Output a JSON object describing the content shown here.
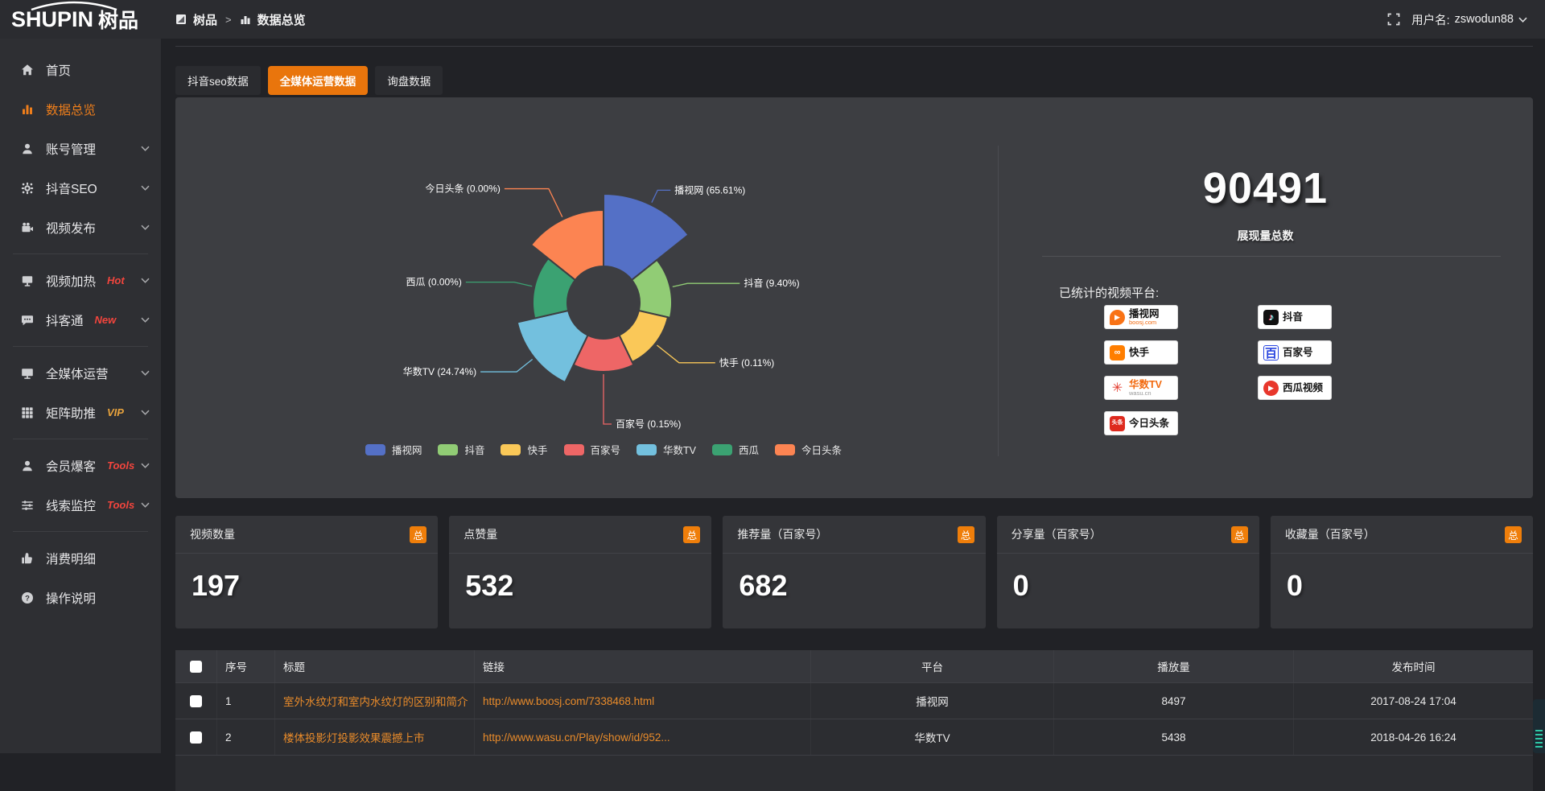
{
  "app": {
    "logo_text": "SHUPIN",
    "logo_suffix": "树品"
  },
  "topbar": {
    "breadcrumb_root": "树品",
    "breadcrumb_separator": ">",
    "breadcrumb_current": "数据总览",
    "user_label": "用户名:",
    "username": "zswodun88"
  },
  "tabs": [
    {
      "label": "抖音seo数据",
      "active": false
    },
    {
      "label": "全媒体运营数据",
      "active": true
    },
    {
      "label": "询盘数据",
      "active": false
    }
  ],
  "sidebar": {
    "items": [
      {
        "label": "首页",
        "icon": "home-icon"
      },
      {
        "label": "数据总览",
        "icon": "bar-chart-icon",
        "active": true
      },
      {
        "label": "账号管理",
        "icon": "user-icon",
        "chevron": true
      },
      {
        "label": "抖音SEO",
        "icon": "gear-icon",
        "chevron": true
      },
      {
        "label": "视频发布",
        "icon": "video-camera-icon",
        "chevron": true,
        "divider_after": true
      },
      {
        "label": "视频加热",
        "icon": "billboard-icon",
        "badge": "Hot",
        "badge_color": "#f2453d",
        "chevron": true
      },
      {
        "label": "抖客通",
        "icon": "chat-icon",
        "badge": "New",
        "badge_color": "#f2453d",
        "chevron": true,
        "divider_after": true
      },
      {
        "label": "全媒体运营",
        "icon": "monitor-icon",
        "chevron": true
      },
      {
        "label": "矩阵助推",
        "icon": "grid-icon",
        "badge": "VIP",
        "badge_color": "#e8a33d",
        "chevron": true,
        "divider_after": true
      },
      {
        "label": "会员爆客",
        "icon": "member-icon",
        "badge": "Tools",
        "badge_color": "#f2453d",
        "chevron": true
      },
      {
        "label": "线索监控",
        "icon": "sliders-icon",
        "badge": "Tools",
        "badge_color": "#f2453d",
        "chevron": true,
        "divider_after": true
      },
      {
        "label": "消费明细",
        "icon": "thumb-up-icon"
      },
      {
        "label": "操作说明",
        "icon": "question-icon"
      }
    ]
  },
  "chart_data": {
    "type": "pie",
    "subtype": "nightingale-rose-donut",
    "title": "",
    "unit": "percent",
    "series": [
      {
        "name": "播视网",
        "value": 65.61,
        "label": "播视网 (65.61%)",
        "color": "#5470c6"
      },
      {
        "name": "抖音",
        "value": 9.4,
        "label": "抖音 (9.40%)",
        "color": "#91cc75"
      },
      {
        "name": "快手",
        "value": 0.11,
        "label": "快手 (0.11%)",
        "color": "#fac858"
      },
      {
        "name": "百家号",
        "value": 0.15,
        "label": "百家号 (0.15%)",
        "color": "#ee6666"
      },
      {
        "name": "华数TV",
        "value": 24.74,
        "label": "华数TV (24.74%)",
        "color": "#73c0de"
      },
      {
        "name": "西瓜",
        "value": 0.0,
        "label": "西瓜 (0.00%)",
        "color": "#3ba272"
      },
      {
        "name": "今日头条",
        "value": 0.0,
        "label": "今日头条 (0.00%)",
        "color": "#fc8452"
      }
    ],
    "legend": [
      "播视网",
      "抖音",
      "快手",
      "百家号",
      "华数TV",
      "西瓜",
      "今日头条"
    ],
    "legend_position": "bottom",
    "layout_hints": {
      "start_angle": -90,
      "inner_radius": 45,
      "outer_radii": [
        135,
        85,
        82,
        86,
        110,
        88,
        115
      ],
      "center": [
        532,
        255
      ]
    }
  },
  "summary": {
    "total_value": "90491",
    "total_label": "展现量总数",
    "platforms_label": "已统计的视频平台:",
    "platform_columns": [
      [
        {
          "name": "播视网",
          "sub": "boosj.com",
          "icon": "boosj-logo-icon"
        },
        {
          "name": "快手",
          "sub": "",
          "icon": "kuaishou-logo-icon"
        },
        {
          "name": "华数TV",
          "sub": "wasu.cn",
          "icon": "wasu-logo-icon"
        },
        {
          "name": "今日头条",
          "sub": "",
          "icon": "toutiao-logo-icon"
        }
      ],
      [
        {
          "name": "抖音",
          "sub": "",
          "icon": "douyin-logo-icon"
        },
        {
          "name": "百家号",
          "sub": "",
          "icon": "baijiahao-logo-icon"
        },
        {
          "name": "西瓜视频",
          "sub": "",
          "icon": "xigua-logo-icon"
        }
      ]
    ]
  },
  "stat_cards": [
    {
      "label": "视频数量",
      "badge": "总",
      "value": "197"
    },
    {
      "label": "点赞量",
      "badge": "总",
      "value": "532"
    },
    {
      "label": "推荐量（百家号）",
      "badge": "总",
      "value": "682"
    },
    {
      "label": "分享量（百家号）",
      "badge": "总",
      "value": "0"
    },
    {
      "label": "收藏量（百家号）",
      "badge": "总",
      "value": "0"
    }
  ],
  "table": {
    "headers": [
      "序号",
      "标题",
      "链接",
      "平台",
      "播放量",
      "发布时间"
    ],
    "rows": [
      {
        "num": "1",
        "title": "室外水纹灯和室内水纹灯的区别和简介",
        "link": "http://www.boosj.com/7338468.html",
        "platform": "播视网",
        "plays": "8497",
        "time": "2017-08-24 17:04"
      },
      {
        "num": "2",
        "title": "楼体投影灯投影效果震撼上市",
        "link": "http://www.wasu.cn/Play/show/id/952...",
        "platform": "华数TV",
        "plays": "5438",
        "time": "2018-04-26 16:24"
      }
    ]
  },
  "colors": {
    "accent_orange": "#e9750c",
    "link_orange": "#e98b2a",
    "panel_bg": "#3d3e42",
    "sidebar_bg": "#2e2f33"
  }
}
